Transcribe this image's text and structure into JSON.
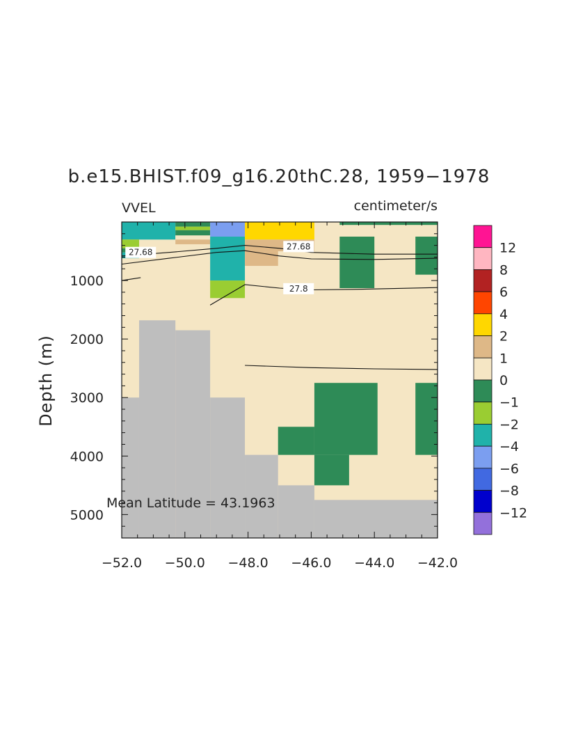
{
  "chart_data": {
    "type": "heatmap",
    "title": "b.e15.BHIST.f09_g16.20thC.28, 1959−1978",
    "left_label": "VVEL",
    "right_label": "centimeter/s",
    "ylabel": "Depth (m)",
    "xlabel": "",
    "xlim": [
      -52.0,
      -42.0
    ],
    "ylim": [
      0,
      5400
    ],
    "y_reversed": true,
    "x_ticks": [
      {
        "value": -52,
        "label": "−52.0"
      },
      {
        "value": -50,
        "label": "−50.0"
      },
      {
        "value": -48,
        "label": "−48.0"
      },
      {
        "value": -46,
        "label": "−46.0"
      },
      {
        "value": -44,
        "label": "−44.0"
      },
      {
        "value": -42,
        "label": "−42.0"
      }
    ],
    "y_ticks": [
      {
        "value": 1000,
        "label": "1000"
      },
      {
        "value": 2000,
        "label": "2000"
      },
      {
        "value": 3000,
        "label": "3000"
      },
      {
        "value": 4000,
        "label": "4000"
      },
      {
        "value": 5000,
        "label": "5000"
      }
    ],
    "annotation": "Mean Latitude = 43.1963",
    "colorbar": {
      "labels": [
        "12",
        "8",
        "6",
        "4",
        "2",
        "1",
        "0",
        "−1",
        "−2",
        "−4",
        "−6",
        "−8",
        "−12"
      ],
      "colors": [
        "#ff1493",
        "#ffb6c1",
        "#b22222",
        "#ff4500",
        "#ffd700",
        "#deb887",
        "#f5e6c4",
        "#2e8b57",
        "#9acd32",
        "#20b2aa",
        "#7b9ef0",
        "#4169e1",
        "#0000cd",
        "#9370db"
      ]
    },
    "background_color": "#f5e6c4",
    "land_color": "#bebebe",
    "cells": [
      {
        "x0": -52.0,
        "x1": -50.3,
        "y0": 0,
        "y1": 300,
        "color": "#20b2aa"
      },
      {
        "x0": -52.0,
        "x1": -51.45,
        "y0": 300,
        "y1": 450,
        "color": "#9acd32"
      },
      {
        "x0": -52.0,
        "x1": -51.45,
        "y0": 450,
        "y1": 520,
        "color": "#2e8b57"
      },
      {
        "x0": -52.0,
        "x1": -51.45,
        "y0": 520,
        "y1": 620,
        "color": "#20b2aa"
      },
      {
        "x0": -50.3,
        "x1": -49.2,
        "y0": 0,
        "y1": 80,
        "color": "#2e8b57"
      },
      {
        "x0": -50.3,
        "x1": -49.2,
        "y0": 80,
        "y1": 140,
        "color": "#9acd32"
      },
      {
        "x0": -50.3,
        "x1": -49.2,
        "y0": 140,
        "y1": 230,
        "color": "#2e8b57"
      },
      {
        "x0": -50.3,
        "x1": -49.2,
        "y0": 230,
        "y1": 300,
        "color": "#f5e6c4"
      },
      {
        "x0": -50.3,
        "x1": -49.2,
        "y0": 300,
        "y1": 380,
        "color": "#deb887"
      },
      {
        "x0": -49.2,
        "x1": -48.1,
        "y0": 0,
        "y1": 250,
        "color": "#7b9ef0"
      },
      {
        "x0": -49.2,
        "x1": -48.1,
        "y0": 250,
        "y1": 1000,
        "color": "#20b2aa"
      },
      {
        "x0": -49.2,
        "x1": -48.1,
        "y0": 1000,
        "y1": 1300,
        "color": "#9acd32"
      },
      {
        "x0": -48.1,
        "x1": -45.9,
        "y0": 0,
        "y1": 300,
        "color": "#ffd700"
      },
      {
        "x0": -48.1,
        "x1": -45.9,
        "y0": 300,
        "y1": 500,
        "color": "#deb887"
      },
      {
        "x0": -48.1,
        "x1": -47.05,
        "y0": 500,
        "y1": 750,
        "color": "#deb887"
      },
      {
        "x0": -45.1,
        "x1": -42.0,
        "y0": 0,
        "y1": 50,
        "color": "#2e8b57"
      },
      {
        "x0": -45.1,
        "x1": -44.0,
        "y0": 250,
        "y1": 1130,
        "color": "#2e8b57"
      },
      {
        "x0": -42.7,
        "x1": -42.0,
        "y0": 250,
        "y1": 900,
        "color": "#2e8b57"
      },
      {
        "x0": -45.9,
        "x1": -43.9,
        "y0": 2750,
        "y1": 3980,
        "color": "#2e8b57"
      },
      {
        "x0": -47.05,
        "x1": -45.9,
        "y0": 3500,
        "y1": 3980,
        "color": "#2e8b57"
      },
      {
        "x0": -45.9,
        "x1": -44.8,
        "y0": 3980,
        "y1": 4500,
        "color": "#2e8b57"
      },
      {
        "x0": -42.7,
        "x1": -42.0,
        "y0": 2750,
        "y1": 3980,
        "color": "#2e8b57"
      }
    ],
    "land": [
      {
        "x0": -52.0,
        "x1": -51.45,
        "y0": 3000,
        "y1": 5400
      },
      {
        "x0": -51.45,
        "x1": -50.3,
        "y0": 1680,
        "y1": 5400
      },
      {
        "x0": -50.3,
        "x1": -49.2,
        "y0": 1850,
        "y1": 5400
      },
      {
        "x0": -49.2,
        "x1": -48.1,
        "y0": 3000,
        "y1": 5400
      },
      {
        "x0": -48.1,
        "x1": -47.05,
        "y0": 3980,
        "y1": 5400
      },
      {
        "x0": -47.05,
        "x1": -45.9,
        "y0": 4500,
        "y1": 5400
      },
      {
        "x0": -45.9,
        "x1": -42.0,
        "y0": 4750,
        "y1": 5400
      }
    ],
    "contours": [
      {
        "label": "27.68",
        "points": [
          [
            -52.0,
            580
          ],
          [
            -50.5,
            520
          ],
          [
            -49.0,
            450
          ],
          [
            -48.1,
            400
          ],
          [
            -47.0,
            450
          ],
          [
            -46.0,
            520
          ],
          [
            -44.0,
            550
          ],
          [
            -42.0,
            550
          ]
        ],
        "label_at": [
          -51.4,
          520
        ],
        "label2_at": [
          -46.4,
          420
        ]
      },
      {
        "label": "27.68",
        "points": [
          [
            -52.0,
            720
          ],
          [
            -50.5,
            620
          ],
          [
            -49.0,
            520
          ],
          [
            -48.1,
            490
          ],
          [
            -47.0,
            580
          ],
          [
            -46.0,
            630
          ],
          [
            -44.0,
            640
          ],
          [
            -42.0,
            620
          ]
        ]
      },
      {
        "label": "27.8",
        "points": [
          [
            -52.0,
            1000
          ],
          [
            -51.4,
            950
          ]
        ]
      },
      {
        "label": "27.8",
        "points": [
          [
            -49.2,
            1420
          ],
          [
            -48.1,
            1070
          ],
          [
            -47.0,
            1130
          ],
          [
            -46.0,
            1160
          ],
          [
            -44.5,
            1150
          ],
          [
            -42.0,
            1120
          ]
        ],
        "label_at": [
          -46.4,
          1140
        ]
      },
      {
        "label": "",
        "points": [
          [
            -48.1,
            2450
          ],
          [
            -46.0,
            2490
          ],
          [
            -44.0,
            2510
          ],
          [
            -42.0,
            2520
          ]
        ]
      }
    ]
  }
}
